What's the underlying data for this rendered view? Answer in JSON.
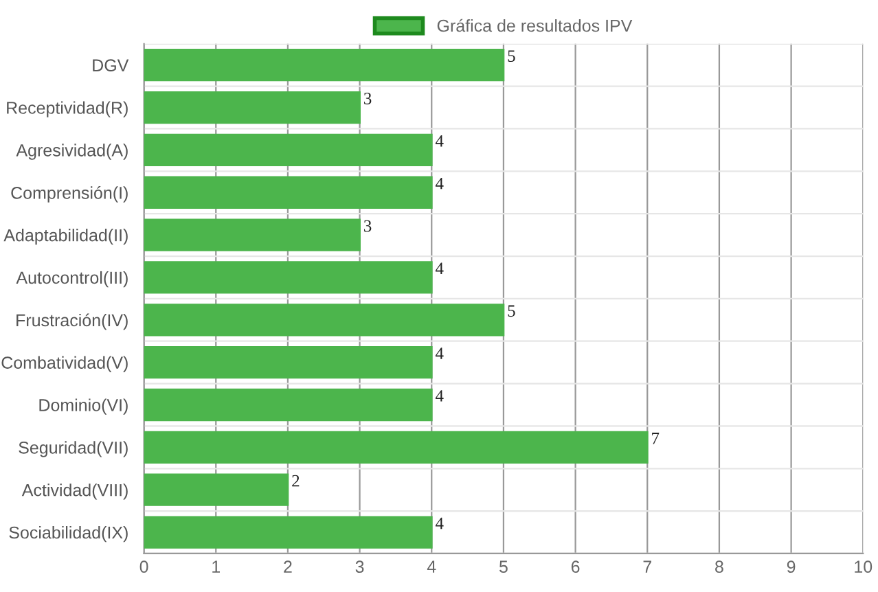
{
  "chart_data": {
    "type": "bar",
    "orientation": "horizontal",
    "categories": [
      "DGV",
      "Receptividad(R)",
      "Agresividad(A)",
      "Comprensión(I)",
      "Adaptabilidad(II)",
      "Autocontrol(III)",
      "Frustración(IV)",
      "Combatividad(V)",
      "Dominio(VI)",
      "Seguridad(VII)",
      "Actividad(VIII)",
      "Sociabilidad(IX)"
    ],
    "series": [
      {
        "name": "Gráfica de resultados IPV",
        "color": "#4cb54c",
        "values": [
          5,
          3,
          4,
          4,
          3,
          4,
          5,
          4,
          4,
          7,
          2,
          4
        ]
      }
    ],
    "xlim": [
      0,
      10
    ],
    "xticks": [
      0,
      1,
      2,
      3,
      4,
      5,
      6,
      7,
      8,
      9,
      10
    ],
    "grid": true,
    "legend": "top",
    "data_labels": true
  }
}
